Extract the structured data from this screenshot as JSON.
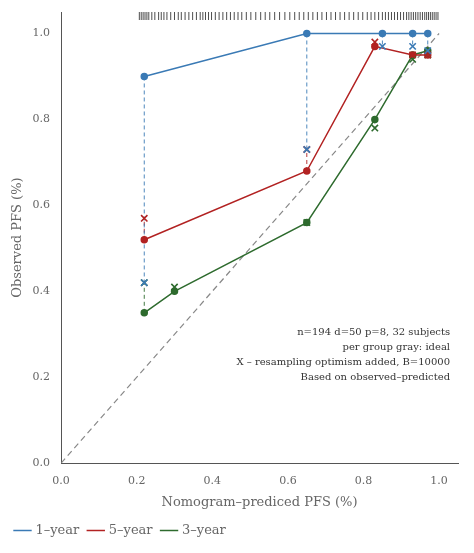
{
  "chart_data": {
    "type": "line",
    "xlabel": "Nomogram–prediced PFS (%)",
    "ylabel": "Observed PFS (%)",
    "annotations": [
      "n=194 d=50 p=8, 32 subjects",
      "per group gray: ideal",
      "X – resampling optimism added, B=10000",
      "Based on observed–predicted"
    ],
    "series": [
      {
        "name": "1–year",
        "color": "#3a7ab5",
        "marker": "o",
        "line_style": "solid",
        "x": [
          0.22,
          0.65,
          0.85,
          0.93,
          0.97
        ],
        "values": [
          0.9,
          1.0,
          1.0,
          1.0,
          1.0
        ],
        "optimism": {
          "marker": "x",
          "x": [
            0.22,
            0.65,
            0.85,
            0.93,
            0.97
          ],
          "values": [
            0.42,
            0.73,
            0.97,
            0.97,
            0.96
          ]
        }
      },
      {
        "name": "5–year",
        "color": "#b22222",
        "marker": "o",
        "line_style": "solid",
        "x": [
          0.22,
          0.65,
          0.83,
          0.93,
          0.97
        ],
        "values": [
          0.52,
          0.68,
          0.97,
          0.95,
          0.95
        ],
        "optimism": {
          "marker": "x",
          "x": [
            0.22,
            0.65,
            0.83,
            0.93,
            0.97
          ],
          "values": [
            0.57,
            0.73,
            0.98,
            0.95,
            0.95
          ]
        }
      },
      {
        "name": "3–year",
        "color": "#2e6b2e",
        "marker": "o",
        "line_style": "solid",
        "x": [
          0.22,
          0.3,
          0.65,
          0.83,
          0.93,
          0.97
        ],
        "values": [
          0.35,
          0.4,
          0.56,
          0.8,
          0.95,
          0.96
        ],
        "optimism": {
          "marker": "x",
          "x": [
            0.22,
            0.3,
            0.65,
            0.83,
            0.93,
            0.97
          ],
          "values": [
            0.42,
            0.41,
            0.56,
            0.78,
            0.94,
            0.95
          ]
        }
      }
    ],
    "ideal": {
      "color": "#888888",
      "line_style": "dashed",
      "x": [
        0,
        1
      ],
      "values": [
        0,
        1
      ]
    },
    "rug_x": [
      0.207,
      0.212,
      0.217,
      0.222,
      0.227,
      0.232,
      0.24,
      0.248,
      0.258,
      0.265,
      0.272,
      0.28,
      0.29,
      0.3,
      0.31,
      0.318,
      0.328,
      0.338,
      0.348,
      0.358,
      0.368,
      0.375,
      0.382,
      0.39,
      0.398,
      0.408,
      0.418,
      0.428,
      0.438,
      0.448,
      0.458,
      0.468,
      0.478,
      0.49,
      0.502,
      0.515,
      0.528,
      0.54,
      0.552,
      0.565,
      0.578,
      0.592,
      0.605,
      0.618,
      0.63,
      0.642,
      0.654,
      0.666,
      0.678,
      0.69,
      0.702,
      0.714,
      0.726,
      0.738,
      0.75,
      0.762,
      0.774,
      0.786,
      0.798,
      0.81,
      0.82,
      0.83,
      0.84,
      0.85,
      0.858,
      0.866,
      0.874,
      0.882,
      0.89,
      0.898,
      0.906,
      0.914,
      0.92,
      0.926,
      0.932,
      0.938,
      0.944,
      0.95,
      0.956,
      0.962,
      0.967,
      0.972,
      0.977,
      0.982,
      0.987,
      0.992,
      0.997
    ],
    "xlim": [
      0.0,
      1.05
    ],
    "ylim": [
      0.0,
      1.05
    ],
    "xticks": [
      {
        "value": 0,
        "label": "0.0"
      },
      0.2,
      0.4,
      0.6,
      0.8,
      {
        "value": 1,
        "label": "1.0"
      }
    ],
    "yticks": [
      {
        "value": 0,
        "label": "0.0"
      },
      0.2,
      0.4,
      0.6,
      0.8,
      {
        "value": 1,
        "label": "1.0"
      }
    ],
    "grid": false,
    "legend": "bottom"
  }
}
